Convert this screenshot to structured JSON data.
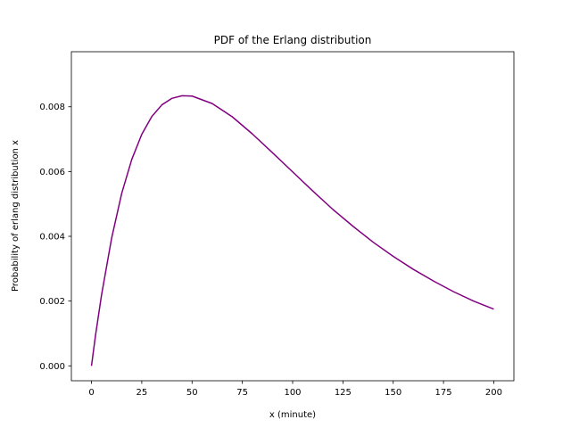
{
  "chart_data": {
    "type": "line",
    "title": "PDF of the Erlang distribution",
    "xlabel": "x (minute)",
    "ylabel": "Probability of erlang distribution x",
    "xlim": [
      -10,
      210
    ],
    "ylim": [
      -0.00046,
      0.0097
    ],
    "x_ticks": [
      0,
      25,
      50,
      75,
      100,
      125,
      150,
      175,
      200
    ],
    "x_tick_labels": [
      "0",
      "25",
      "50",
      "75",
      "100",
      "125",
      "150",
      "175",
      "200"
    ],
    "y_ticks": [
      0.0,
      0.002,
      0.004,
      0.006,
      0.008
    ],
    "y_tick_labels": [
      "0.000",
      "0.002",
      "0.004",
      "0.006",
      "0.008"
    ],
    "grid": false,
    "series": [
      {
        "color": "#800080",
        "x": [
          0,
          2,
          5,
          10,
          15,
          20,
          25,
          30,
          35,
          40,
          45,
          50,
          60,
          70,
          80,
          90,
          100,
          110,
          120,
          130,
          140,
          150,
          160,
          170,
          180,
          190,
          200
        ],
        "y": [
          0.0,
          0.00094,
          0.00219,
          0.00394,
          0.00532,
          0.00637,
          0.00715,
          0.0077,
          0.00806,
          0.00826,
          0.00834,
          0.00833,
          0.0081,
          0.00769,
          0.00716,
          0.00658,
          0.00599,
          0.0054,
          0.00483,
          0.00431,
          0.00382,
          0.00338,
          0.00298,
          0.00262,
          0.00229,
          0.002,
          0.00175
        ]
      }
    ]
  }
}
